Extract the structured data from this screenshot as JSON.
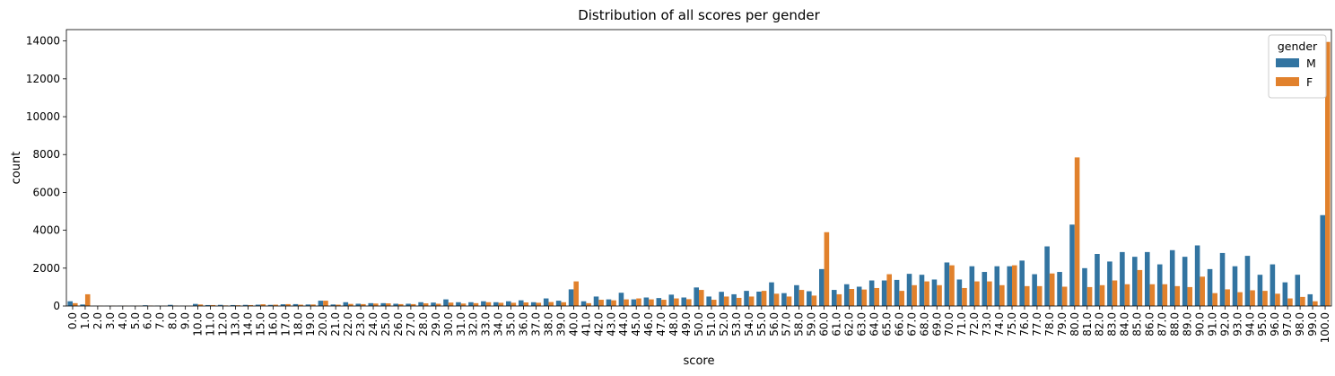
{
  "chart_data": {
    "type": "bar",
    "title": "Distribution of all scores per gender",
    "xlabel": "score",
    "ylabel": "count",
    "ylim": [
      0,
      14600
    ],
    "yticks": [
      0,
      2000,
      4000,
      6000,
      8000,
      10000,
      12000,
      14000
    ],
    "categories": [
      "0.0",
      "1.0",
      "2.0",
      "3.0",
      "4.0",
      "5.0",
      "6.0",
      "7.0",
      "8.0",
      "9.0",
      "10.0",
      "11.0",
      "12.0",
      "13.0",
      "14.0",
      "15.0",
      "16.0",
      "17.0",
      "18.0",
      "19.0",
      "20.0",
      "21.0",
      "22.0",
      "23.0",
      "24.0",
      "25.0",
      "26.0",
      "27.0",
      "28.0",
      "29.0",
      "30.0",
      "31.0",
      "32.0",
      "33.0",
      "34.0",
      "35.0",
      "36.0",
      "37.0",
      "38.0",
      "39.0",
      "40.0",
      "41.0",
      "42.0",
      "43.0",
      "44.0",
      "45.0",
      "46.0",
      "47.0",
      "48.0",
      "49.0",
      "50.0",
      "51.0",
      "52.0",
      "53.0",
      "54.0",
      "55.0",
      "56.0",
      "57.0",
      "58.0",
      "59.0",
      "60.0",
      "61.0",
      "62.0",
      "63.0",
      "64.0",
      "65.0",
      "66.0",
      "67.0",
      "68.0",
      "69.0",
      "70.0",
      "71.0",
      "72.0",
      "73.0",
      "74.0",
      "75.0",
      "76.0",
      "77.0",
      "78.0",
      "79.0",
      "80.0",
      "81.0",
      "82.0",
      "83.0",
      "84.0",
      "85.0",
      "86.0",
      "87.0",
      "88.0",
      "89.0",
      "90.0",
      "91.0",
      "92.0",
      "93.0",
      "94.0",
      "95.0",
      "96.0",
      "97.0",
      "98.0",
      "99.0",
      "100.0"
    ],
    "legend": {
      "title": "gender",
      "position": "top-right"
    },
    "series": [
      {
        "name": "M",
        "color": "#3274a1",
        "values": [
          250,
          80,
          10,
          10,
          10,
          10,
          40,
          20,
          60,
          10,
          110,
          50,
          60,
          50,
          60,
          70,
          60,
          90,
          100,
          80,
          280,
          80,
          200,
          120,
          150,
          150,
          120,
          120,
          200,
          180,
          350,
          200,
          200,
          250,
          200,
          250,
          300,
          200,
          400,
          280,
          880,
          250,
          500,
          350,
          700,
          350,
          450,
          420,
          600,
          450,
          980,
          500,
          750,
          620,
          800,
          760,
          1250,
          680,
          1100,
          780,
          1950,
          850,
          1150,
          1020,
          1350,
          1350,
          1380,
          1700,
          1650,
          1400,
          2300,
          1400,
          2100,
          1800,
          2100,
          2100,
          2400,
          1680,
          3150,
          1800,
          4300,
          2000,
          2750,
          2350,
          2850,
          2600,
          2850,
          2200,
          2950,
          2600,
          3200,
          1950,
          2800,
          2100,
          2650,
          1650,
          2200,
          1250,
          1650,
          620,
          4800
        ]
      },
      {
        "name": "F",
        "color": "#e1812c",
        "values": [
          150,
          620,
          10,
          10,
          10,
          10,
          20,
          10,
          20,
          10,
          80,
          50,
          30,
          40,
          50,
          90,
          70,
          100,
          70,
          80,
          280,
          70,
          110,
          100,
          130,
          140,
          100,
          100,
          140,
          120,
          180,
          130,
          150,
          200,
          170,
          170,
          190,
          170,
          210,
          200,
          1300,
          150,
          330,
          300,
          350,
          400,
          350,
          330,
          400,
          360,
          850,
          330,
          500,
          430,
          500,
          800,
          650,
          500,
          850,
          550,
          3900,
          620,
          900,
          870,
          950,
          1680,
          800,
          1100,
          1300,
          1100,
          2150,
          950,
          1300,
          1300,
          1100,
          2150,
          1050,
          1050,
          1720,
          1020,
          7850,
          1000,
          1100,
          1350,
          1150,
          1900,
          1150,
          1150,
          1050,
          1000,
          1550,
          680,
          880,
          730,
          830,
          800,
          650,
          400,
          480,
          250,
          13950
        ]
      }
    ]
  }
}
